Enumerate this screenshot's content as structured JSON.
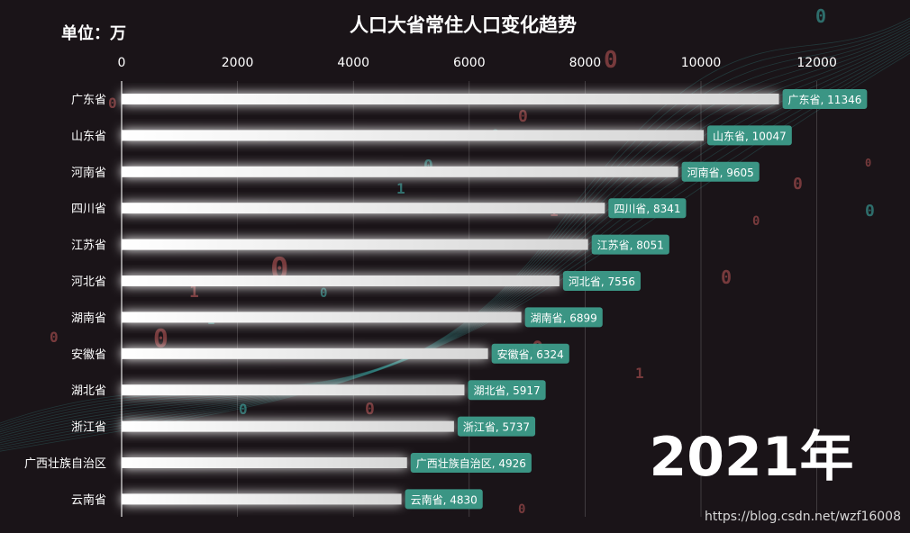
{
  "colors": {
    "background": "#1a1418",
    "bar_start": "#ffffff",
    "bar_end": "#d9d9d9",
    "label_box": "#3d9c8a",
    "deco_red": "#c45a5a",
    "deco_teal": "#3fb7b0"
  },
  "chart_data": {
    "type": "bar",
    "orientation": "horizontal",
    "title": "人口大省常住人口变化趋势",
    "unit_label": "单位：万",
    "period_label": "2021年",
    "categories": [
      "广东省",
      "山东省",
      "河南省",
      "四川省",
      "江苏省",
      "河北省",
      "湖南省",
      "安徽省",
      "湖北省",
      "浙江省",
      "广西壮族自治区",
      "云南省"
    ],
    "values": [
      11346,
      10047,
      9605,
      8341,
      8051,
      7556,
      6899,
      6324,
      5917,
      5737,
      4926,
      4830
    ],
    "bar_labels": [
      "广东省, 11346",
      "山东省, 10047",
      "河南省, 9605",
      "四川省, 8341",
      "江苏省, 8051",
      "河北省, 7556",
      "湖南省, 6899",
      "安徽省, 6324",
      "湖北省, 5917",
      "浙江省, 5737",
      "广西壮族自治区, 4926",
      "云南省, 4830"
    ],
    "x_ticks": [
      0,
      2000,
      4000,
      6000,
      8000,
      10000,
      12000
    ],
    "x_tick_labels": [
      "0",
      "2000",
      "4000",
      "6000",
      "8000",
      "10000",
      "12000"
    ],
    "xlim": [
      0,
      13000
    ],
    "axis_position": "top",
    "grid": true
  },
  "watermark": "https://blog.csdn.net/wzf16008"
}
